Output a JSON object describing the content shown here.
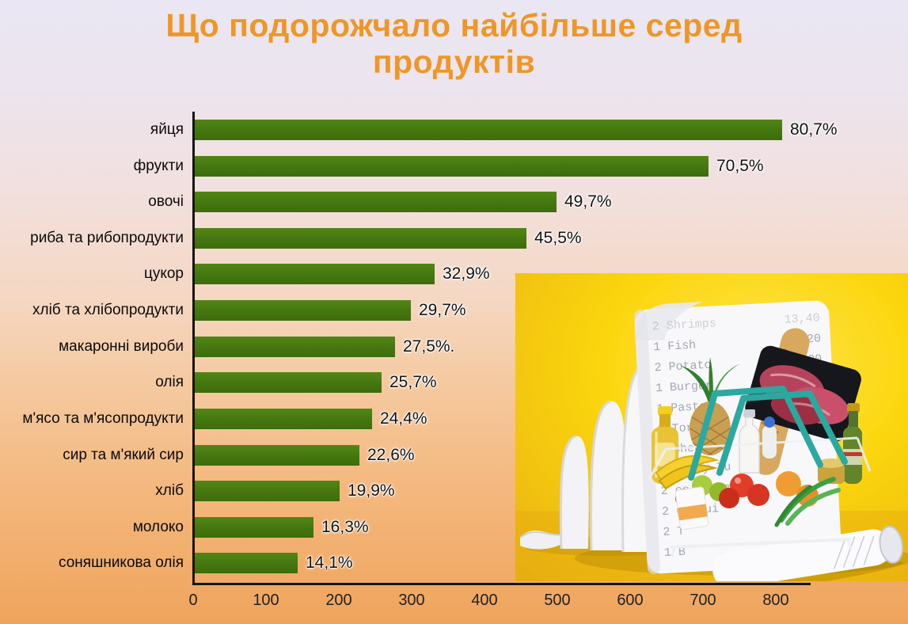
{
  "title": {
    "line1": "Що подорожчало найбільше серед",
    "line2": "продуктів"
  },
  "chart_data": {
    "type": "bar",
    "orientation": "horizontal",
    "title": "Що подорожчало найбільше серед продуктів",
    "categories": [
      "яйця",
      "фрукти",
      "овочі",
      "риба та рибопродукти",
      "цукор",
      "хліб та хлібопродукти",
      "макаронні вироби",
      "олія",
      "м'ясо та м'ясопродукти",
      "сир та м'який сир",
      "хліб",
      "молоко",
      "соняшникова олія"
    ],
    "values": [
      80.7,
      70.5,
      49.7,
      45.5,
      32.9,
      29.7,
      27.5,
      25.7,
      24.4,
      22.6,
      19.9,
      16.3,
      14.1
    ],
    "value_labels": [
      "80,7%",
      "70,5%",
      "49,7%",
      "45,5%",
      "32,9%",
      "29,7%",
      "27,5%.",
      "25,7%",
      "24,4%",
      "22,6%",
      "19,9%",
      "16,3%",
      "14,1%"
    ],
    "x_ticks": [
      0,
      100,
      200,
      300,
      400,
      500,
      600,
      700,
      800
    ],
    "x_axis_range": [
      0,
      847
    ],
    "bar_length_units": "percent value times 10 on the 0–800 axis",
    "xlabel": "",
    "ylabel": "",
    "grid": false,
    "legend": false,
    "bar_color": "#447610",
    "axis_color": "#151515"
  },
  "illustration": {
    "description": "photo: long paper receipt folded in waves and a wire shopping basket full of groceries on a yellow background",
    "receipt_items": [
      "2 Shrimps",
      "1 Fish",
      "2 Potato",
      "1 Burger",
      "1 Pasta",
      "1 Tortilla",
      "1 Cheese",
      "1 Spicy Tu",
      "2 ce Cream",
      "2 ge Jui",
      "2 T",
      "1 B",
      "1 Pa",
      "1 To",
      "1 Ch",
      "1 Sp",
      "2 Ic"
    ],
    "receipt_prices": [
      "13,40",
      "11,20",
      "6,00",
      "8,00",
      ",50"
    ],
    "colors": {
      "background_yellow": "#fbd60d",
      "receipt_paper": "#f7f7fa",
      "basket_handle_teal": "#2ba89f",
      "wire": "#e9ecf1"
    }
  },
  "colors": {
    "title_orange": "#ee9727",
    "bar_green": "#447610",
    "bg_top": "#eae6f3",
    "bg_bottom": "#efa45c",
    "text": "#0a0a0a"
  }
}
